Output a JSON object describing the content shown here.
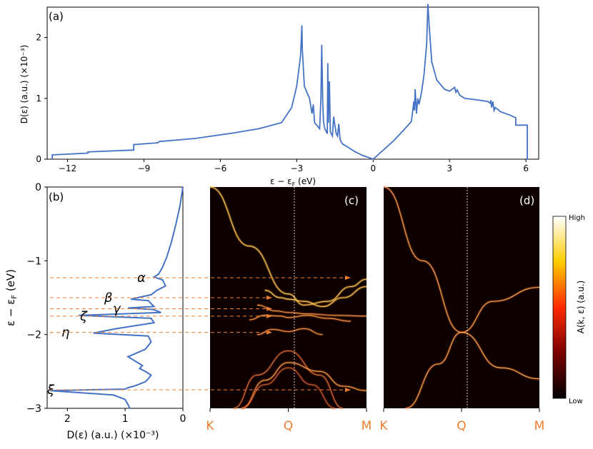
{
  "chart_data": [
    {
      "panel": "(a)",
      "type": "line",
      "xlabel": "ε − ε_F (eV)",
      "ylabel": "D(ε) (a.u.) (×10⁻³)",
      "xlim": [
        -12.8,
        6.5
      ],
      "ylim": [
        0,
        2.5
      ],
      "xticks": [
        -12,
        -9,
        -6,
        -3,
        0,
        3,
        6
      ],
      "yticks": [
        0,
        1,
        2
      ],
      "color": "#4472c4",
      "series": [
        {
          "x": [
            -12.6,
            -12.6,
            -11.2,
            -11.2,
            -9.4,
            -9.4,
            -8.45,
            -8.4,
            -7.0,
            -5.5,
            -4.5,
            -3.6,
            -3.2,
            -3.0,
            -2.85,
            -2.8,
            -2.78,
            -2.7,
            -2.5,
            -2.4,
            -2.35,
            -2.3,
            -2.2,
            -2.1,
            -2.05,
            -2.02,
            -1.98,
            -1.95,
            -1.9,
            -1.8,
            -1.78,
            -1.76,
            -1.72,
            -1.68,
            -1.6,
            -1.55,
            -1.5,
            -1.45,
            -1.4,
            -1.35,
            -1.3,
            -1.25,
            -1.2,
            -1.0,
            -0.7,
            -0.4,
            0.0,
            0.4,
            0.8,
            1.2,
            1.5,
            1.6,
            1.62,
            1.65,
            1.7,
            1.75,
            1.8,
            1.9,
            2.0,
            2.1,
            2.15,
            2.2,
            2.3,
            2.5,
            2.8,
            3.0,
            3.2,
            3.25,
            3.3,
            3.4,
            3.6,
            4.0,
            4.5,
            4.6,
            4.62,
            4.65,
            4.7,
            4.75,
            4.8,
            5.0,
            5.4,
            5.6,
            5.6,
            6.05,
            6.05,
            6.1
          ],
          "y": [
            0.0,
            0.07,
            0.1,
            0.12,
            0.15,
            0.24,
            0.27,
            0.29,
            0.34,
            0.43,
            0.5,
            0.6,
            0.85,
            1.2,
            1.7,
            2.2,
            1.8,
            1.2,
            1.0,
            0.75,
            0.9,
            0.6,
            0.55,
            0.5,
            1.0,
            1.88,
            0.95,
            0.62,
            0.5,
            0.42,
            1.58,
            0.6,
            1.28,
            0.45,
            0.38,
            0.7,
            0.55,
            0.42,
            0.38,
            0.58,
            0.33,
            0.28,
            0.25,
            0.2,
            0.12,
            0.06,
            0.0,
            0.15,
            0.3,
            0.48,
            0.62,
            0.95,
            0.8,
            1.15,
            0.75,
            1.0,
            0.9,
            1.1,
            1.4,
            1.9,
            2.55,
            2.2,
            1.6,
            1.3,
            1.15,
            1.12,
            1.18,
            1.1,
            1.14,
            1.05,
            1.0,
            0.98,
            0.95,
            0.92,
            0.97,
            0.85,
            0.95,
            0.8,
            0.85,
            0.78,
            0.72,
            0.68,
            0.56,
            0.56,
            0.0,
            0.0
          ]
        }
      ]
    },
    {
      "panel": "(b)",
      "type": "line",
      "xlabel": "D(ε) (a.u.) (×10⁻³)",
      "ylabel": "ε − ε_F (eV)",
      "xlim": [
        2.35,
        0
      ],
      "ylim": [
        -3,
        0
      ],
      "xticks": [
        2,
        1,
        0
      ],
      "yticks": [
        0,
        -1,
        -2,
        -3
      ],
      "color": "#4472c4",
      "series": [
        {
          "x": [
            0.0,
            0.05,
            0.12,
            0.2,
            0.28,
            0.36,
            0.42,
            0.5,
            0.35,
            0.3,
            0.45,
            0.55,
            0.9,
            0.6,
            0.55,
            0.5,
            0.95,
            0.52,
            0.45,
            0.38,
            1.8,
            0.55,
            0.5,
            1.15,
            1.55,
            0.6,
            0.55,
            0.65,
            0.95,
            0.7,
            0.75,
            0.65,
            0.55,
            0.6,
            0.65,
            0.75,
            0.85,
            0.95,
            1.0,
            2.3,
            1.2,
            1.0,
            0.95,
            0.92
          ],
          "y": [
            0.0,
            -0.25,
            -0.5,
            -0.75,
            -0.95,
            -1.1,
            -1.18,
            -1.22,
            -1.26,
            -1.34,
            -1.4,
            -1.46,
            -1.52,
            -1.54,
            -1.58,
            -1.62,
            -1.64,
            -1.66,
            -1.68,
            -1.7,
            -1.74,
            -1.78,
            -1.84,
            -1.92,
            -1.98,
            -2.02,
            -2.1,
            -2.2,
            -2.3,
            -2.42,
            -2.46,
            -2.5,
            -2.55,
            -2.6,
            -2.64,
            -2.67,
            -2.7,
            -2.72,
            -2.74,
            -2.76,
            -2.82,
            -2.88,
            -2.95,
            -3.0
          ]
        }
      ],
      "annotations": [
        {
          "label": "α",
          "energy": -1.23
        },
        {
          "label": "β",
          "energy": -1.5
        },
        {
          "label": "γ",
          "energy": -1.65
        },
        {
          "label": "ζ",
          "energy": -1.75
        },
        {
          "label": "η",
          "energy": -1.97
        },
        {
          "label": "ξ",
          "energy": -2.75
        }
      ],
      "dashed_levels": [
        -1.23,
        -1.5,
        -1.65,
        -1.75,
        -1.97,
        -2.75
      ],
      "arrow_color": "#ed7d31"
    },
    {
      "panel": "(c)",
      "type": "heatmap",
      "xticks": [
        "K",
        "Q",
        "M"
      ],
      "ylim": [
        -3,
        0
      ],
      "background": "#0f0000",
      "bands": [
        {
          "x": [
            0,
            0.25,
            0.5,
            0.6,
            0.75,
            0.9,
            1.0
          ],
          "y": [
            0,
            -0.8,
            -1.45,
            -1.6,
            -1.55,
            -1.35,
            -1.25
          ],
          "intensity": 0.9
        },
        {
          "x": [
            0.35,
            0.45,
            0.5,
            0.6,
            0.72,
            0.85,
            1.0
          ],
          "y": [
            -1.4,
            -1.5,
            -1.52,
            -1.55,
            -1.62,
            -1.5,
            -1.35
          ],
          "intensity": 0.95
        },
        {
          "x": [
            0.3,
            0.42,
            0.5,
            0.62,
            0.8,
            1.0
          ],
          "y": [
            -1.6,
            -1.68,
            -1.7,
            -1.72,
            -1.74,
            -1.75
          ],
          "intensity": 0.7
        },
        {
          "x": [
            0.25,
            0.35,
            0.45,
            0.5,
            0.62,
            0.75,
            0.9
          ],
          "y": [
            -1.8,
            -1.74,
            -1.75,
            -1.77,
            -1.74,
            -1.78,
            -1.82
          ],
          "intensity": 0.75
        },
        {
          "x": [
            0.3,
            0.4,
            0.5,
            0.6,
            0.72
          ],
          "y": [
            -2.0,
            -1.93,
            -1.96,
            -1.92,
            -2.0
          ],
          "intensity": 0.7
        },
        {
          "x": [
            0.15,
            0.3,
            0.5,
            0.7,
            0.85
          ],
          "y": [
            -3.0,
            -2.55,
            -2.22,
            -2.55,
            -3.0
          ],
          "intensity": 0.6
        },
        {
          "x": [
            0.2,
            0.35,
            0.5,
            0.7,
            0.85,
            1.0
          ],
          "y": [
            -3.0,
            -2.62,
            -2.38,
            -2.5,
            -2.7,
            -2.76
          ],
          "intensity": 0.75
        },
        {
          "x": [
            0.2,
            0.35,
            0.5,
            0.65,
            0.8
          ],
          "y": [
            -3.0,
            -2.68,
            -2.45,
            -2.68,
            -3.0
          ],
          "intensity": 0.5
        }
      ]
    },
    {
      "panel": "(d)",
      "type": "heatmap",
      "xticks": [
        "K",
        "Q",
        "M"
      ],
      "ylim": [
        -3,
        0
      ],
      "background": "#0f0000",
      "bands": [
        {
          "x": [
            0,
            0.25,
            0.5,
            0.75,
            1.0
          ],
          "y": [
            0,
            -1.0,
            -1.97,
            -2.45,
            -2.6
          ],
          "intensity": 0.8
        },
        {
          "x": [
            0.14,
            0.35,
            0.5,
            0.7,
            1.0
          ],
          "y": [
            -3.0,
            -2.4,
            -1.97,
            -1.55,
            -1.36
          ],
          "intensity": 0.8
        }
      ]
    },
    {
      "type": "colorbar",
      "label": "A(k, ε) (a.u.)",
      "top_label": "High",
      "bottom_label": "Low"
    }
  ],
  "labels": {
    "a": "(a)",
    "b": "(b)",
    "c": "(c)",
    "d": "(d)",
    "xlabel_a": "ε − ε",
    "xlabel_a_sub": "F",
    "xlabel_a_unit": " (eV)",
    "ylabel_a": "D(ε) (a.u.) (×10⁻³)",
    "ylabel_b": "ε − ε",
    "ylabel_b_sub": "F",
    "ylabel_b_unit": " (eV)",
    "xlabel_b": "D(ε) (a.u.) (×10⁻³)",
    "cbar_label": "A(k, ε) (a.u.)",
    "cbar_high": "High",
    "cbar_low": "Low"
  }
}
